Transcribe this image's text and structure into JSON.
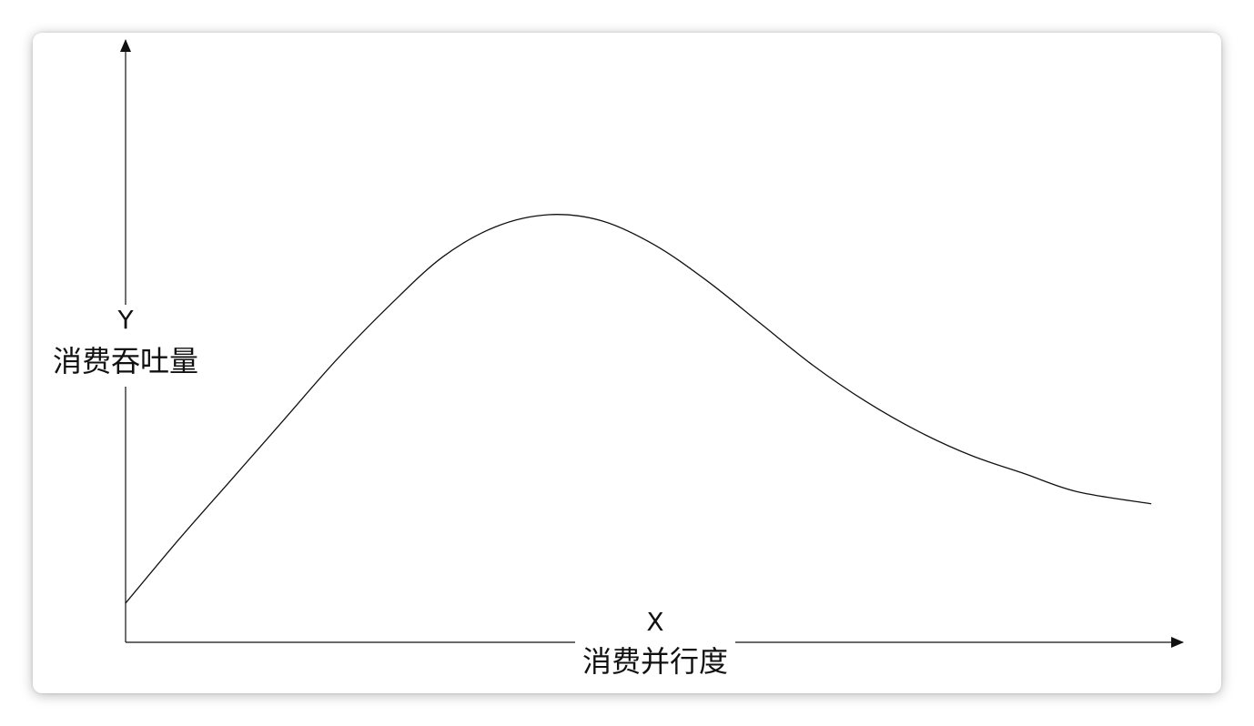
{
  "chart_data": {
    "type": "line",
    "x_axis": {
      "symbol": "X",
      "label": "消费并行度"
    },
    "y_axis": {
      "symbol": "Y",
      "label": "消费吞吐量"
    },
    "grid": false,
    "legend": "none",
    "xlim": [
      0,
      10
    ],
    "ylim": [
      0,
      10
    ],
    "series": [
      {
        "x": [
          0,
          0.5,
          1,
          1.5,
          2,
          2.5,
          3,
          3.5,
          4,
          4.5,
          5,
          5.5,
          6,
          6.5,
          7,
          7.5,
          8,
          8.5,
          9,
          9.7
        ],
        "y": [
          0.65,
          1.7,
          2.7,
          3.7,
          4.7,
          5.6,
          6.4,
          6.9,
          7.1,
          7.0,
          6.6,
          6.0,
          5.3,
          4.6,
          4.0,
          3.5,
          3.1,
          2.8,
          2.5,
          2.3
        ]
      }
    ],
    "colors": {
      "line": "#111111",
      "axis": "#111111"
    }
  }
}
